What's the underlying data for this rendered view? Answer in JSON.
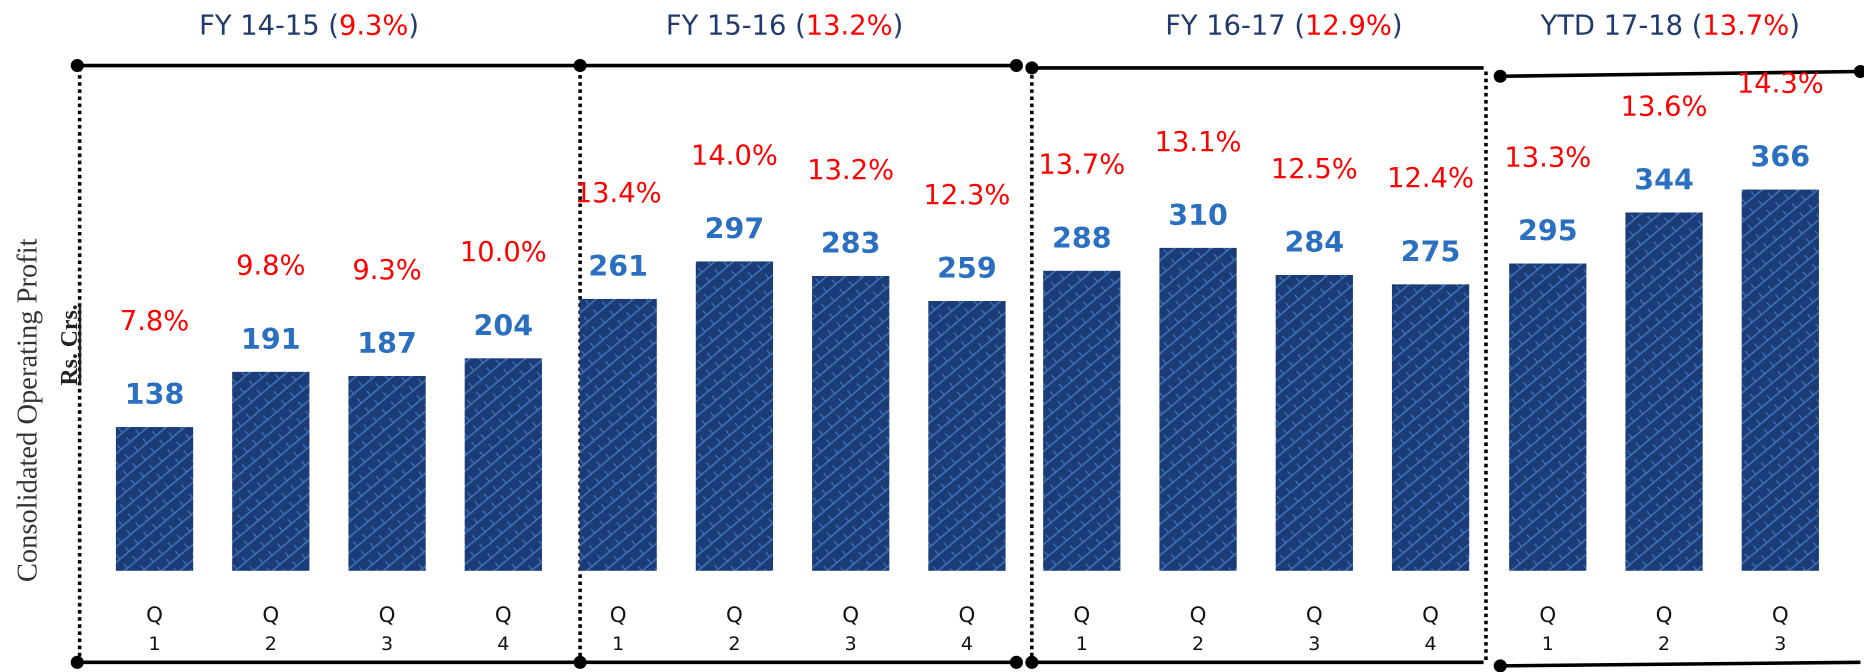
{
  "chart_data": {
    "type": "bar",
    "ylabel": "Consolidated Operating Profit",
    "ylabel2": "Rs. Crs.",
    "ylim": [
      0,
      420
    ],
    "bar_color": "#1c3c78",
    "value_label_color": "#2a6fc0",
    "margin_color": "#ff0000",
    "title_color": "#1f3a6b",
    "groups": [
      {
        "title_parts": [
          "FY 14-15 (",
          "9.3%",
          ")"
        ],
        "categories": [
          [
            "Q",
            "1"
          ],
          [
            "Q",
            "2"
          ],
          [
            "Q",
            "3"
          ],
          [
            "Q",
            "4"
          ]
        ],
        "values": [
          138,
          191,
          187,
          204
        ],
        "margins": [
          7.8,
          9.8,
          9.3,
          10.0
        ],
        "margin_labels": [
          "7.8%",
          "9.8%",
          "9.3%",
          "10.0%"
        ]
      },
      {
        "title_parts": [
          "FY 15-16 (",
          "13.2%",
          ")"
        ],
        "categories": [
          [
            "Q",
            "1"
          ],
          [
            "Q",
            "2"
          ],
          [
            "Q",
            "3"
          ],
          [
            "Q",
            "4"
          ]
        ],
        "values": [
          261,
          297,
          283,
          259
        ],
        "margins": [
          13.4,
          14.0,
          13.2,
          12.3
        ],
        "margin_labels": [
          "13.4%",
          "14.0%",
          "13.2%",
          "12.3%"
        ]
      },
      {
        "title_parts": [
          "FY 16-17 (",
          "12.9%",
          ")"
        ],
        "categories": [
          [
            "Q",
            "1"
          ],
          [
            "Q",
            "2"
          ],
          [
            "Q",
            "3"
          ],
          [
            "Q",
            "4"
          ]
        ],
        "values": [
          288,
          310,
          284,
          275
        ],
        "margins": [
          13.7,
          13.1,
          12.5,
          12.4
        ],
        "margin_labels": [
          "13.7%",
          "13.1%",
          "12.5%",
          "12.4%"
        ]
      },
      {
        "title_parts": [
          "YTD 17-18 (",
          "13.7%",
          ")"
        ],
        "categories": [
          [
            "Q",
            "1"
          ],
          [
            "Q",
            "2"
          ],
          [
            "Q",
            "3"
          ]
        ],
        "values": [
          295,
          344,
          366
        ],
        "margins": [
          13.3,
          13.6,
          14.3
        ],
        "margin_labels": [
          "13.3%",
          "13.6%",
          "14.3%"
        ]
      }
    ]
  }
}
